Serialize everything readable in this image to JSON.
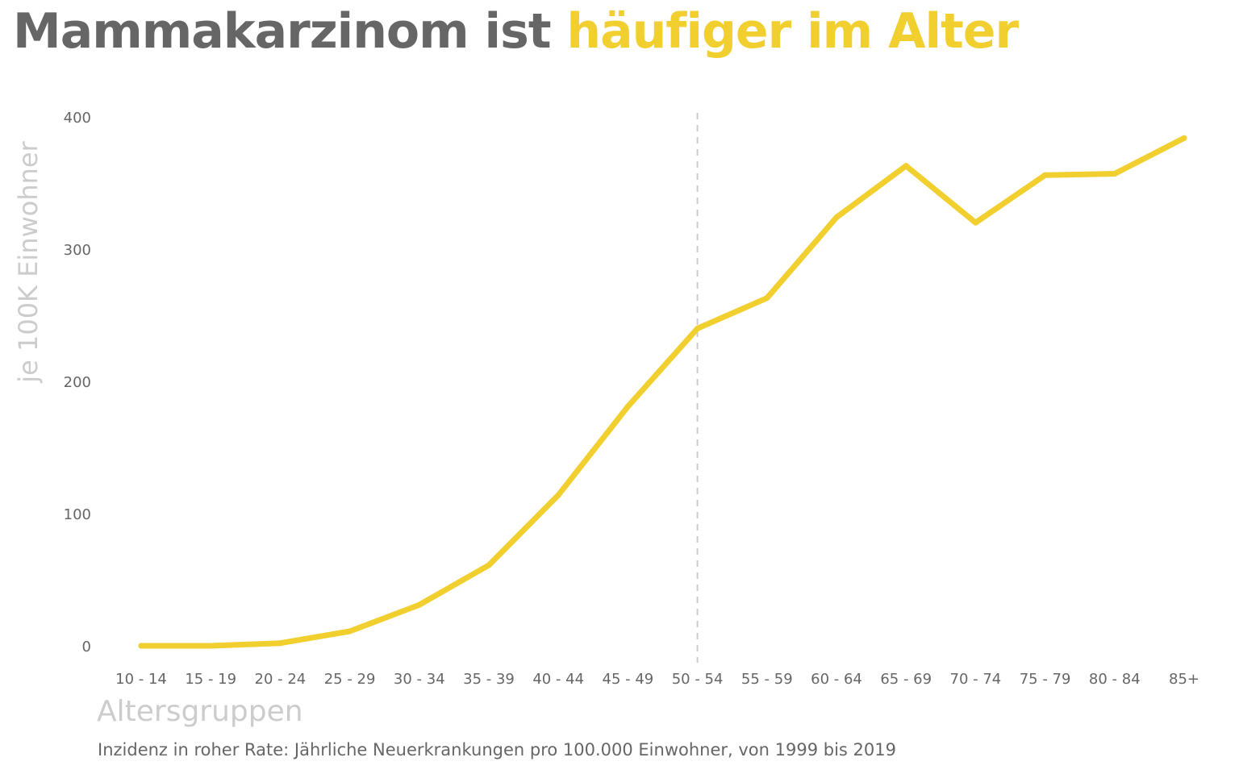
{
  "title": {
    "part1": "Mammakarzinom ist",
    "part2": "häufiger im Alter"
  },
  "colors": {
    "accent": "#f1cf2e",
    "title_gray": "#666666",
    "label_gray": "#cccccc",
    "reference_line": "#cccccc"
  },
  "chart_data": {
    "type": "line",
    "title": "Mammakarzinom ist häufiger im Alter",
    "xlabel": "Altersgruppen",
    "ylabel": "je 100K Einwohner",
    "caption": "Inzidenz in roher Rate: Jährliche Neuerkrankungen pro 100.000 Einwohner, von 1999 bis 2019",
    "categories": [
      "10 - 14",
      "15 - 19",
      "20 - 24",
      "25 - 29",
      "30 - 34",
      "35 - 39",
      "40 - 44",
      "45 - 49",
      "50 - 54",
      "55 - 59",
      "60 - 64",
      "65 - 69",
      "70 - 74",
      "75 - 79",
      "80 - 84",
      "85+"
    ],
    "series": [
      {
        "values": [
          0,
          0,
          2,
          11,
          31,
          61,
          114,
          181,
          240,
          263,
          324,
          363,
          320,
          356,
          357,
          384
        ],
        "color": "#f1cf2e"
      }
    ],
    "yticks": [
      0,
      100,
      200,
      300,
      400
    ],
    "ylim": [
      0,
      400
    ],
    "reference_line": {
      "category": "50 - 54",
      "style": "dashed"
    },
    "grid": false,
    "legend": "none"
  }
}
